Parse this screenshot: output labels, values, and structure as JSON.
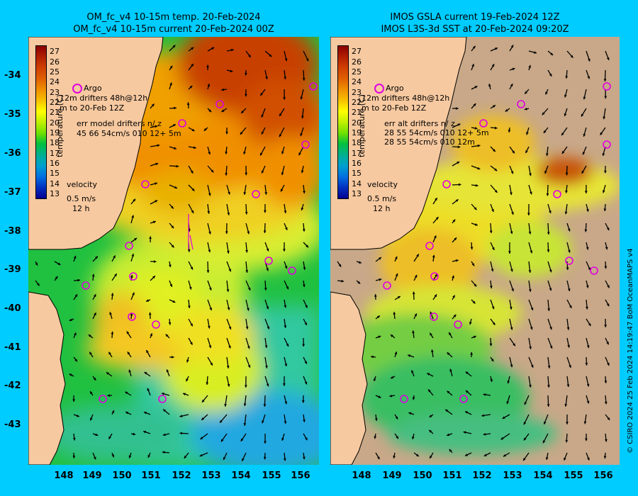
{
  "left_panel": {
    "title_line1": "OM_fc_v4  10-15m temp. 20-Feb-2024",
    "title_line2": "OM_fc_v4  10-15m current 20-Feb-2024 00Z",
    "legend": {
      "argo_label": "Argo",
      "drifters_line1": "12m drifters 48h@12h",
      "drifters_line2": "m   to 20-Feb 12Z",
      "err_line1": "err model drifters n/ z",
      "err_line2": "45 66 54cm/s 010 12+ 5m",
      "velocity_label": "velocity",
      "velocity_scale": "0.5 m/s",
      "velocity_time": "12 h"
    }
  },
  "right_panel": {
    "title_line1": "IMOS GSLA current 19-Feb-2024 12Z",
    "title_line2": "IMOS L3S-3d SST at 20-Feb-2024 09:20Z",
    "legend": {
      "argo_label": "Argo",
      "drifters_line1": "12m drifters 48h@12h",
      "drifters_line2": "m   to 20-Feb 12Z",
      "err_line1": "err alt drifters n/ z",
      "err_line2": "28 55 54cm/s 010 12+ 5m",
      "err_line3": "28 55 54cm/s 010 12m",
      "velocity_label": "velocity",
      "velocity_scale": "0.5 m/s",
      "velocity_time": "12 h"
    }
  },
  "colorbar": {
    "title": "temperature (C)",
    "ticks": [
      "27",
      "26",
      "25",
      "24",
      "23",
      "22",
      "21",
      "20",
      "19",
      "18",
      "17",
      "16",
      "15",
      "14",
      "13"
    ],
    "colors": [
      "#8b0000",
      "#b22000",
      "#d04000",
      "#e06000",
      "#f09000",
      "#f7c000",
      "#ffff00",
      "#c0f000",
      "#70e000",
      "#00c040",
      "#00b090",
      "#00a0d0",
      "#0070e0",
      "#0030c0",
      "#000090"
    ]
  },
  "axes": {
    "lat_ticks": [
      "-34",
      "-35",
      "-36",
      "-37",
      "-38",
      "-39",
      "-40",
      "-41",
      "-42",
      "-43"
    ],
    "lon_ticks": [
      "148",
      "149",
      "150",
      "151",
      "152",
      "153",
      "154",
      "155",
      "156"
    ]
  },
  "credit": "© CSIRO 2024   25 Feb 2024 14:19:47 BoM OceanMAPS v4",
  "colors": {
    "background": "#00ccff",
    "land": "#f7c9a0",
    "no_data": "#c8a888",
    "argo": "#e000e0"
  }
}
